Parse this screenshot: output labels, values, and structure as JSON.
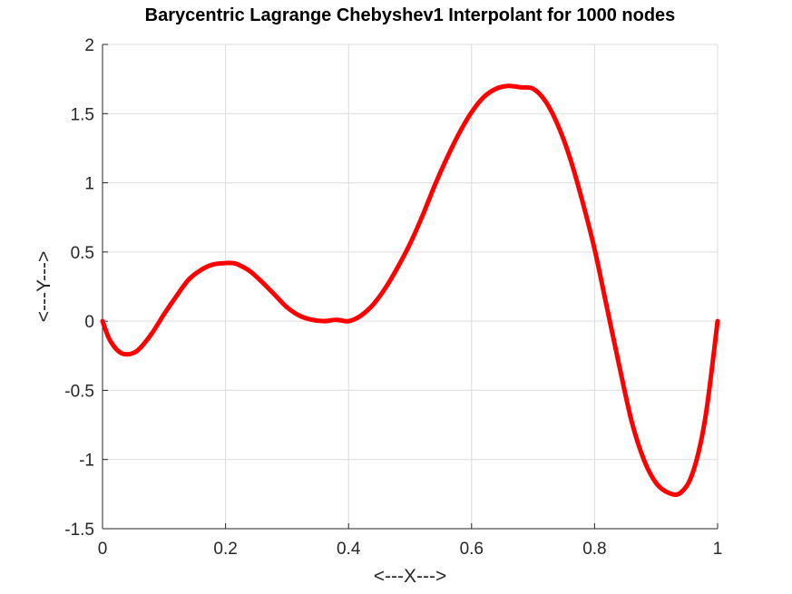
{
  "chart_data": {
    "type": "line",
    "title": "Barycentric Lagrange Chebyshev1 Interpolant for 1000 nodes",
    "xlabel": "<---X--->",
    "ylabel": "<---Y--->",
    "xlim": [
      0,
      1
    ],
    "ylim": [
      -1.5,
      2
    ],
    "grid": true,
    "xticks": [
      "0",
      "0.2",
      "0.4",
      "0.6",
      "0.8",
      "1"
    ],
    "yticks": [
      "-1.5",
      "-1",
      "-0.5",
      "0",
      "0.5",
      "1",
      "1.5",
      "2"
    ],
    "series": [
      {
        "color": "#ff0000",
        "x": [
          0,
          0.01,
          0.02,
          0.03,
          0.04,
          0.05,
          0.06,
          0.08,
          0.1,
          0.12,
          0.14,
          0.16,
          0.18,
          0.2,
          0.21,
          0.22,
          0.24,
          0.26,
          0.28,
          0.3,
          0.32,
          0.34,
          0.36,
          0.38,
          0.4,
          0.42,
          0.44,
          0.46,
          0.48,
          0.5,
          0.52,
          0.54,
          0.56,
          0.58,
          0.6,
          0.62,
          0.64,
          0.66,
          0.68,
          0.7,
          0.72,
          0.74,
          0.76,
          0.78,
          0.8,
          0.82,
          0.84,
          0.86,
          0.88,
          0.9,
          0.92,
          0.94,
          0.96,
          0.98,
          1.0
        ],
        "y": [
          0,
          -0.12,
          -0.19,
          -0.23,
          -0.24,
          -0.23,
          -0.2,
          -0.09,
          0.05,
          0.18,
          0.3,
          0.37,
          0.41,
          0.42,
          0.42,
          0.41,
          0.36,
          0.28,
          0.19,
          0.1,
          0.04,
          0.01,
          0.0,
          0.01,
          0.0,
          0.04,
          0.12,
          0.24,
          0.39,
          0.56,
          0.76,
          0.98,
          1.18,
          1.36,
          1.51,
          1.62,
          1.68,
          1.7,
          1.69,
          1.68,
          1.59,
          1.42,
          1.18,
          0.87,
          0.52,
          0.1,
          -0.32,
          -0.72,
          -1.0,
          -1.17,
          -1.24,
          -1.24,
          -1.09,
          -0.7,
          0.0
        ]
      }
    ]
  }
}
